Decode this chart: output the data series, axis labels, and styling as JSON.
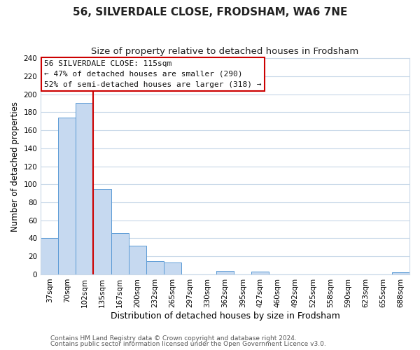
{
  "title": "56, SILVERDALE CLOSE, FRODSHAM, WA6 7NE",
  "subtitle": "Size of property relative to detached houses in Frodsham",
  "xlabel": "Distribution of detached houses by size in Frodsham",
  "ylabel": "Number of detached properties",
  "bar_labels": [
    "37sqm",
    "70sqm",
    "102sqm",
    "135sqm",
    "167sqm",
    "200sqm",
    "232sqm",
    "265sqm",
    "297sqm",
    "330sqm",
    "362sqm",
    "395sqm",
    "427sqm",
    "460sqm",
    "492sqm",
    "525sqm",
    "558sqm",
    "590sqm",
    "623sqm",
    "655sqm",
    "688sqm"
  ],
  "bar_values": [
    40,
    174,
    190,
    95,
    46,
    32,
    15,
    13,
    0,
    0,
    4,
    0,
    3,
    0,
    0,
    0,
    0,
    0,
    0,
    0,
    2
  ],
  "bar_color": "#c6d9f0",
  "bar_edge_color": "#5b9bd5",
  "vline_x_idx": 2,
  "vline_color": "#cc0000",
  "ylim": [
    0,
    240
  ],
  "yticks": [
    0,
    20,
    40,
    60,
    80,
    100,
    120,
    140,
    160,
    180,
    200,
    220,
    240
  ],
  "annotation_title": "56 SILVERDALE CLOSE: 115sqm",
  "annotation_line1": "← 47% of detached houses are smaller (290)",
  "annotation_line2": "52% of semi-detached houses are larger (318) →",
  "footer1": "Contains HM Land Registry data © Crown copyright and database right 2024.",
  "footer2": "Contains public sector information licensed under the Open Government Licence v3.0.",
  "background_color": "#ffffff",
  "grid_color": "#c8d8e8",
  "title_fontsize": 11,
  "subtitle_fontsize": 9.5,
  "ylabel_fontsize": 8.5,
  "xlabel_fontsize": 9,
  "tick_fontsize": 7.5,
  "annot_fontsize": 8,
  "footer_fontsize": 6.5
}
